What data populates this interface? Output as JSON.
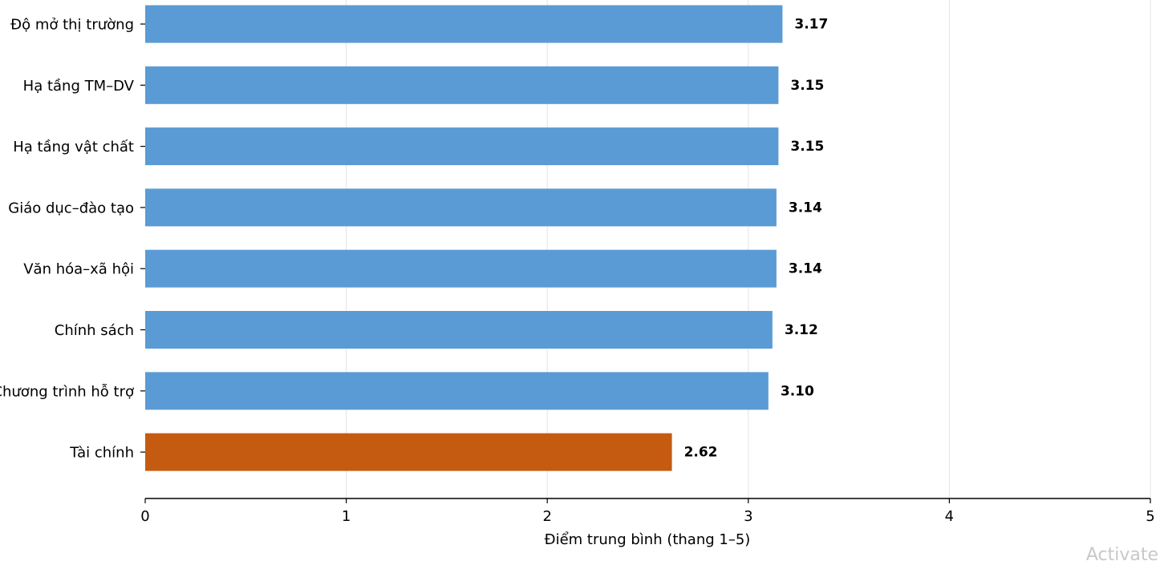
{
  "chart_data": {
    "type": "bar",
    "orientation": "horizontal",
    "categories": [
      "Độ mở thị trường",
      "Hạ tầng TM–DV",
      "Hạ tầng vật chất",
      "Giáo dục–đào tạo",
      "Văn hóa–xã hội",
      "Chính sách",
      "Chương trình hỗ trợ",
      "Tài chính"
    ],
    "values": [
      3.17,
      3.15,
      3.15,
      3.14,
      3.14,
      3.12,
      3.1,
      2.62
    ],
    "value_labels": [
      "3.17",
      "3.15",
      "3.15",
      "3.14",
      "3.14",
      "3.12",
      "3.10",
      "2.62"
    ],
    "bar_colors": [
      "#5b9bd5",
      "#5b9bd5",
      "#5b9bd5",
      "#5b9bd5",
      "#5b9bd5",
      "#5b9bd5",
      "#5b9bd5",
      "#c55a11"
    ],
    "xlabel": "Điểm trung bình (thang 1–5)",
    "ylabel": "",
    "xlim": [
      0,
      5
    ],
    "xticks": [
      0,
      1,
      2,
      3,
      4,
      5
    ],
    "grid": "vertical",
    "legend": "none"
  },
  "watermark": "Activate"
}
